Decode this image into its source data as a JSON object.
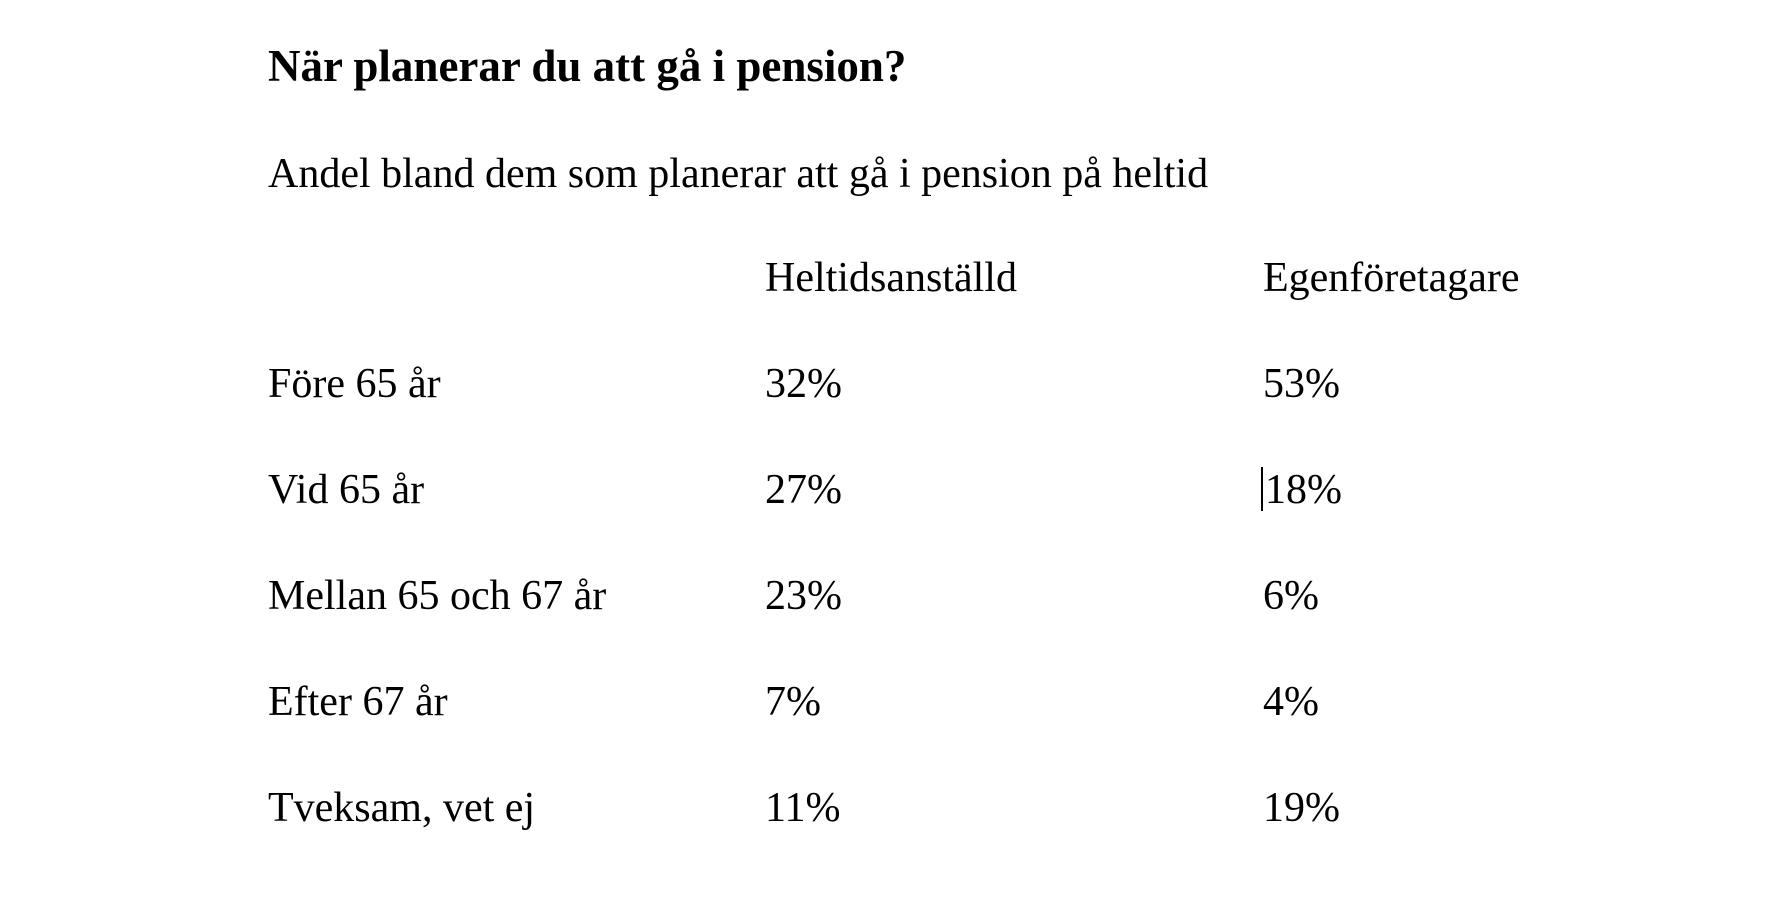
{
  "document": {
    "title": "När planerar du att gå i pension?",
    "subtitle": "Andel bland dem som planerar att gå i pension på heltid"
  },
  "table": {
    "headers": [
      "",
      "Heltidsanställd",
      "Egenföretagare"
    ],
    "rows": [
      {
        "label": "Före 65 år",
        "heltidsanstalld": "32%",
        "egenforetagare": "53%"
      },
      {
        "label": "Vid 65 år",
        "heltidsanstalld": "27%",
        "egenforetagare": "18%"
      },
      {
        "label": "Mellan 65 och 67 år",
        "heltidsanstalld": "23%",
        "egenforetagare": "6%"
      },
      {
        "label": "Efter 67 år",
        "heltidsanstalld": "7%",
        "egenforetagare": "4%"
      },
      {
        "label": "Tveksam, vet ej",
        "heltidsanstalld": "11%",
        "egenforetagare": "19%"
      }
    ]
  }
}
